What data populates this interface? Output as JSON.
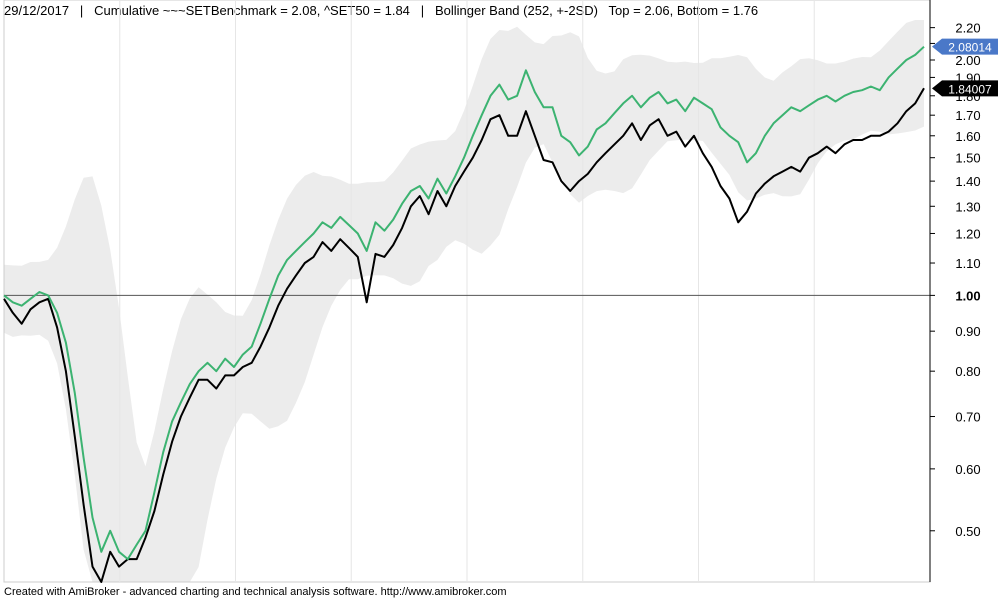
{
  "header": {
    "date": "29/12/2017",
    "sep1": "|",
    "title": "Cumulative ~~~SETBenchmark = 2.08, ^SET50 = 1.84",
    "sep2": "|",
    "bollinger": "Bollinger Band (252, +-2SD)",
    "top_bottom": "Top = 2.06, Bottom = 1.76"
  },
  "footer": {
    "credit": "Created with AmiBroker - advanced charting and technical analysis software. http://www.amibroker.com"
  },
  "chart_data": {
    "type": "line",
    "x_axis": "time (index, unlabeled)",
    "y_scale": "log",
    "ylim": [
      0.43,
      2.25
    ],
    "y_ticks": [
      {
        "value": 2.2,
        "label": "2.20"
      },
      {
        "value": 2.1,
        "label": "2.10"
      },
      {
        "value": 2.0,
        "label": "2.00"
      },
      {
        "value": 1.9,
        "label": "1.90"
      },
      {
        "value": 1.8,
        "label": "1.80"
      },
      {
        "value": 1.7,
        "label": "1.70"
      },
      {
        "value": 1.6,
        "label": "1.60"
      },
      {
        "value": 1.5,
        "label": "1.50"
      },
      {
        "value": 1.4,
        "label": "1.40"
      },
      {
        "value": 1.3,
        "label": "1.30"
      },
      {
        "value": 1.2,
        "label": "1.20"
      },
      {
        "value": 1.1,
        "label": "1.10"
      },
      {
        "value": 1.0,
        "label": "1.00"
      },
      {
        "value": 0.9,
        "label": "0.90"
      },
      {
        "value": 0.8,
        "label": "0.80"
      },
      {
        "value": 0.7,
        "label": "0.70"
      },
      {
        "value": 0.6,
        "label": "0.60"
      },
      {
        "value": 0.5,
        "label": "0.50"
      }
    ],
    "reference_line": {
      "value": 1.0
    },
    "x_gridlines": 7,
    "series": [
      {
        "name": "SETBenchmark",
        "color": "#3cb371",
        "last_label": "2.08014",
        "last_label_bg": "#4a78c8",
        "values": [
          1.0,
          0.98,
          0.97,
          0.99,
          1.01,
          1.0,
          0.95,
          0.87,
          0.75,
          0.62,
          0.52,
          0.47,
          0.5,
          0.47,
          0.46,
          0.48,
          0.5,
          0.56,
          0.63,
          0.69,
          0.73,
          0.77,
          0.8,
          0.82,
          0.8,
          0.83,
          0.81,
          0.84,
          0.86,
          0.92,
          0.99,
          1.06,
          1.11,
          1.14,
          1.17,
          1.2,
          1.24,
          1.22,
          1.26,
          1.23,
          1.2,
          1.14,
          1.24,
          1.21,
          1.25,
          1.31,
          1.36,
          1.38,
          1.33,
          1.41,
          1.35,
          1.42,
          1.5,
          1.6,
          1.7,
          1.8,
          1.86,
          1.78,
          1.8,
          1.94,
          1.82,
          1.74,
          1.74,
          1.6,
          1.57,
          1.51,
          1.55,
          1.63,
          1.66,
          1.71,
          1.76,
          1.8,
          1.74,
          1.79,
          1.82,
          1.76,
          1.78,
          1.72,
          1.79,
          1.76,
          1.73,
          1.64,
          1.6,
          1.57,
          1.48,
          1.52,
          1.6,
          1.66,
          1.7,
          1.74,
          1.72,
          1.75,
          1.78,
          1.8,
          1.77,
          1.8,
          1.82,
          1.83,
          1.85,
          1.83,
          1.9,
          1.95,
          2.0,
          2.03,
          2.08
        ]
      },
      {
        "name": "^SET50",
        "color": "#000000",
        "last_label": "1.84007",
        "last_label_bg": "#000000",
        "values": [
          0.99,
          0.95,
          0.92,
          0.96,
          0.98,
          0.99,
          0.91,
          0.8,
          0.66,
          0.54,
          0.45,
          0.43,
          0.47,
          0.45,
          0.46,
          0.46,
          0.49,
          0.53,
          0.59,
          0.65,
          0.7,
          0.74,
          0.78,
          0.78,
          0.76,
          0.79,
          0.79,
          0.81,
          0.82,
          0.86,
          0.91,
          0.97,
          1.02,
          1.06,
          1.1,
          1.12,
          1.17,
          1.14,
          1.18,
          1.15,
          1.12,
          0.98,
          1.13,
          1.12,
          1.16,
          1.22,
          1.3,
          1.34,
          1.27,
          1.36,
          1.3,
          1.38,
          1.44,
          1.5,
          1.58,
          1.68,
          1.7,
          1.6,
          1.6,
          1.72,
          1.6,
          1.49,
          1.48,
          1.4,
          1.36,
          1.4,
          1.43,
          1.48,
          1.52,
          1.56,
          1.6,
          1.66,
          1.58,
          1.65,
          1.68,
          1.6,
          1.62,
          1.55,
          1.6,
          1.52,
          1.46,
          1.38,
          1.33,
          1.24,
          1.28,
          1.35,
          1.39,
          1.42,
          1.44,
          1.46,
          1.44,
          1.5,
          1.52,
          1.55,
          1.52,
          1.56,
          1.58,
          1.58,
          1.6,
          1.6,
          1.62,
          1.66,
          1.72,
          1.76,
          1.84
        ]
      }
    ],
    "bollinger_band": {
      "name": "Bollinger Band (252, +-2SD)",
      "color": "#ececec",
      "top": 2.06,
      "bottom": 1.76
    }
  }
}
